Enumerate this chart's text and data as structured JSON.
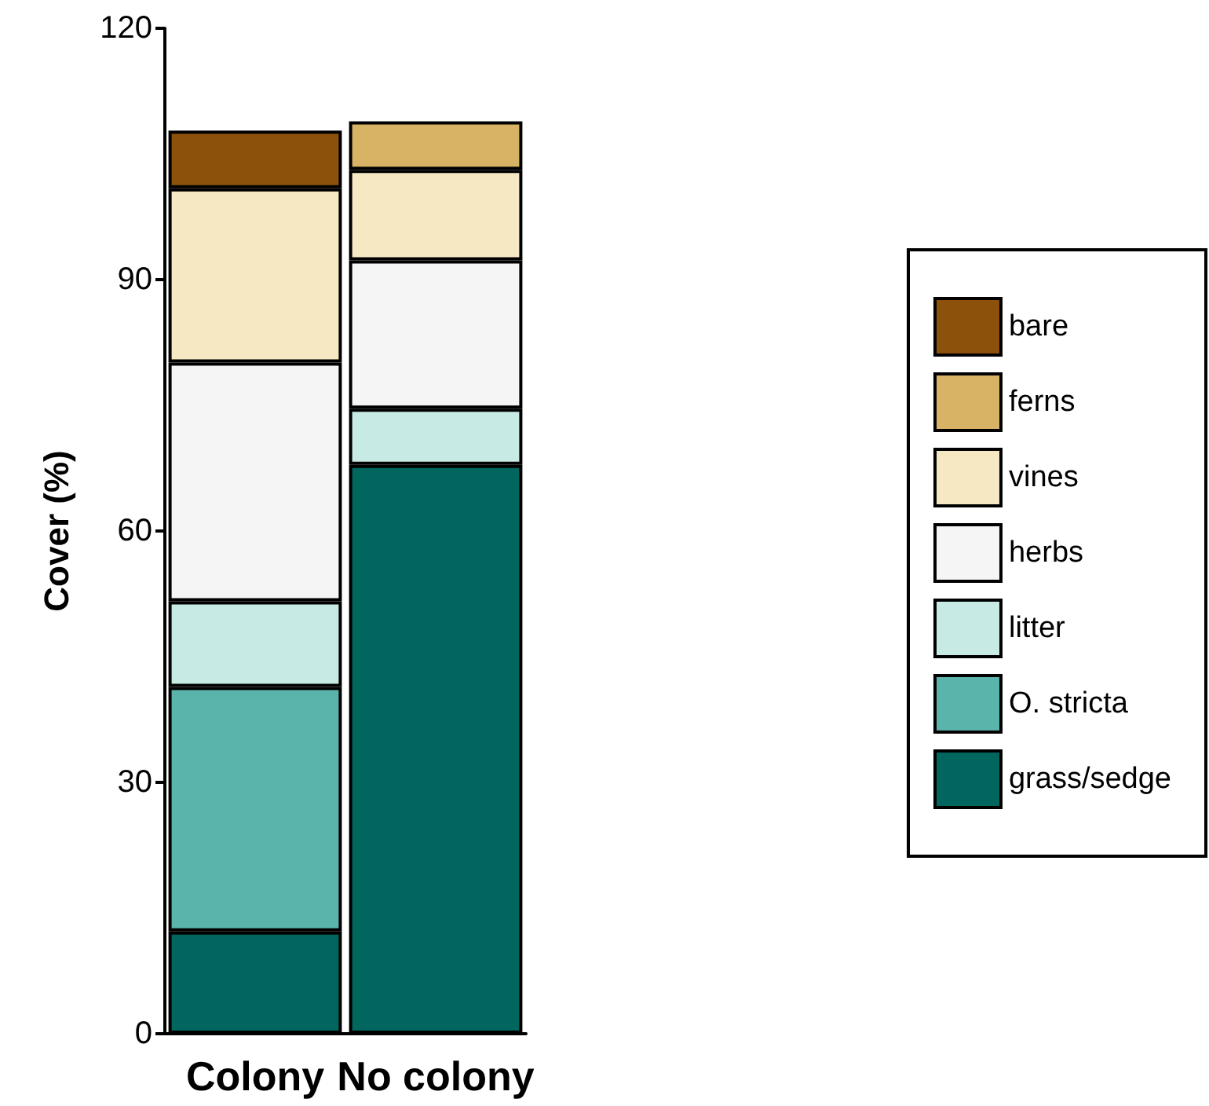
{
  "chart_data": {
    "type": "bar",
    "stacked": true,
    "ylabel": "Cover (%)",
    "categories": [
      "Colony",
      "No colony"
    ],
    "series": [
      {
        "name": "grass/sedge",
        "color": "#01665e",
        "values": [
          12.2,
          67.9
        ]
      },
      {
        "name": "O. stricta",
        "color": "#5ab4ac",
        "values": [
          29.2,
          0
        ]
      },
      {
        "name": "litter",
        "color": "#c7eae5",
        "values": [
          10.2,
          6.7
        ]
      },
      {
        "name": "herbs",
        "color": "#f5f5f5",
        "values": [
          28.5,
          17.7
        ]
      },
      {
        "name": "vines",
        "color": "#f6e8c3",
        "values": [
          20.8,
          10.8
        ]
      },
      {
        "name": "ferns",
        "color": "#d8b365",
        "values": [
          0,
          5.8
        ]
      },
      {
        "name": "bare",
        "color": "#8c510a",
        "values": [
          6.9,
          0
        ]
      }
    ],
    "ylim": [
      0,
      120
    ],
    "yticks": [
      0,
      30,
      60,
      90,
      120
    ],
    "grid": false,
    "legend": "right"
  }
}
